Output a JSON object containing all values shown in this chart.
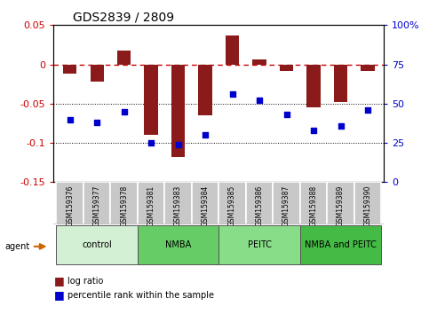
{
  "title": "GDS2839 / 2809",
  "samples": [
    "GSM159376",
    "GSM159377",
    "GSM159378",
    "GSM159381",
    "GSM159383",
    "GSM159384",
    "GSM159385",
    "GSM159386",
    "GSM159387",
    "GSM159388",
    "GSM159389",
    "GSM159390"
  ],
  "log_ratio": [
    -0.012,
    -0.022,
    0.018,
    -0.09,
    -0.118,
    -0.065,
    0.037,
    0.006,
    -0.008,
    -0.055,
    -0.048,
    -0.008
  ],
  "percentile_rank": [
    40,
    38,
    45,
    25,
    24,
    30,
    56,
    52,
    43,
    33,
    36,
    46
  ],
  "bar_color": "#8B1A1A",
  "dot_color": "#0000CD",
  "dashed_line_color": "#CC0000",
  "groups": [
    {
      "label": "control",
      "start": 0,
      "end": 3,
      "color": "#d4f0d4"
    },
    {
      "label": "NMBA",
      "start": 3,
      "end": 6,
      "color": "#66cc66"
    },
    {
      "label": "PEITC",
      "start": 6,
      "end": 9,
      "color": "#88dd88"
    },
    {
      "label": "NMBA and PEITC",
      "start": 9,
      "end": 12,
      "color": "#44bb44"
    }
  ],
  "ylim_left": [
    -0.15,
    0.05
  ],
  "yticks_left": [
    -0.15,
    -0.1,
    -0.05,
    0.0,
    0.05
  ],
  "ylim_right": [
    0,
    100
  ],
  "yticks_right": [
    0,
    25,
    50,
    75,
    100
  ],
  "ytick_labels_right": [
    "0",
    "25",
    "50",
    "75",
    "100%"
  ],
  "title_fontsize": 10,
  "sample_label_fontsize": 5.5,
  "group_label_fontsize": 7,
  "legend_fontsize": 7,
  "axis_fontsize": 8
}
